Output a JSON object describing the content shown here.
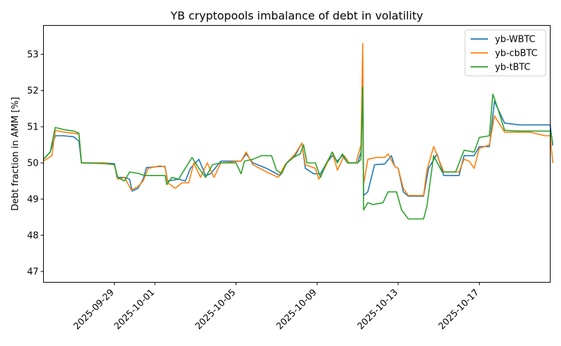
{
  "chart_data": {
    "type": "line",
    "title": "YB cryptopools imbalance of debt in volatility",
    "xlabel": "",
    "ylabel": "Debt fraction in AMM [%]",
    "x_type": "date",
    "xlim": [
      "2025-09-25T12:00",
      "2025-10-20T12:00"
    ],
    "ylim": [
      46.7,
      53.8
    ],
    "yticks": [
      47,
      48,
      49,
      50,
      51,
      52,
      53
    ],
    "xticks": [
      "2025-09-29",
      "2025-10-01",
      "2025-10-05",
      "2025-10-09",
      "2025-10-13",
      "2025-10-17"
    ],
    "grid": false,
    "legend_position": "top-right",
    "series": [
      {
        "name": "yb-WBTC",
        "color": "#1f77b4",
        "points": [
          [
            "2025-09-25T12:00",
            50.1
          ],
          [
            "2025-09-25T20:00",
            50.3
          ],
          [
            "2025-09-26T02:00",
            50.75
          ],
          [
            "2025-09-26T12:00",
            50.75
          ],
          [
            "2025-09-27T00:00",
            50.72
          ],
          [
            "2025-09-27T06:00",
            50.6
          ],
          [
            "2025-09-27T09:00",
            50.0
          ],
          [
            "2025-09-28T12:00",
            50.0
          ],
          [
            "2025-09-29T00:00",
            49.98
          ],
          [
            "2025-09-29T03:00",
            49.6
          ],
          [
            "2025-09-29T12:00",
            49.6
          ],
          [
            "2025-09-29T18:00",
            49.55
          ],
          [
            "2025-09-29T21:00",
            49.22
          ],
          [
            "2025-09-30T04:00",
            49.3
          ],
          [
            "2025-09-30T10:00",
            49.55
          ],
          [
            "2025-09-30T14:00",
            49.87
          ],
          [
            "2025-10-01T06:00",
            49.9
          ],
          [
            "2025-10-01T12:00",
            49.9
          ],
          [
            "2025-10-01T15:00",
            49.5
          ],
          [
            "2025-10-02T04:00",
            49.55
          ],
          [
            "2025-10-02T12:00",
            49.5
          ],
          [
            "2025-10-02T18:00",
            49.85
          ],
          [
            "2025-10-03T04:00",
            50.1
          ],
          [
            "2025-10-03T12:00",
            49.65
          ],
          [
            "2025-10-03T18:00",
            49.7
          ],
          [
            "2025-10-04T06:00",
            50.05
          ],
          [
            "2025-10-05T06:00",
            50.05
          ],
          [
            "2025-10-05T12:00",
            50.25
          ],
          [
            "2025-10-05T20:00",
            50.0
          ],
          [
            "2025-10-06T12:00",
            49.85
          ],
          [
            "2025-10-06T20:00",
            49.75
          ],
          [
            "2025-10-07T04:00",
            49.65
          ],
          [
            "2025-10-07T10:00",
            49.95
          ],
          [
            "2025-10-07T22:00",
            50.2
          ],
          [
            "2025-10-08T06:00",
            50.55
          ],
          [
            "2025-10-08T10:00",
            49.85
          ],
          [
            "2025-10-08T20:00",
            49.7
          ],
          [
            "2025-10-09T04:00",
            49.7
          ],
          [
            "2025-10-09T10:00",
            49.95
          ],
          [
            "2025-10-09T18:00",
            50.2
          ],
          [
            "2025-10-10T00:00",
            50.05
          ],
          [
            "2025-10-10T06:00",
            50.2
          ],
          [
            "2025-10-10T12:00",
            50.0
          ],
          [
            "2025-10-11T00:00",
            50.0
          ],
          [
            "2025-10-11T04:00",
            50.3
          ],
          [
            "2025-10-11T06:00",
            52.9
          ],
          [
            "2025-10-11T07:00",
            49.1
          ],
          [
            "2025-10-11T12:00",
            49.2
          ],
          [
            "2025-10-11T20:00",
            49.95
          ],
          [
            "2025-10-12T08:00",
            49.97
          ],
          [
            "2025-10-12T16:00",
            50.2
          ],
          [
            "2025-10-12T20:00",
            49.9
          ],
          [
            "2025-10-13T00:00",
            49.85
          ],
          [
            "2025-10-13T06:00",
            49.2
          ],
          [
            "2025-10-13T12:00",
            49.08
          ],
          [
            "2025-10-14T06:00",
            49.08
          ],
          [
            "2025-10-14T12:00",
            49.85
          ],
          [
            "2025-10-14T22:00",
            50.25
          ],
          [
            "2025-10-15T06:00",
            49.65
          ],
          [
            "2025-10-16T00:00",
            49.65
          ],
          [
            "2025-10-16T06:00",
            50.2
          ],
          [
            "2025-10-16T18:00",
            50.2
          ],
          [
            "2025-10-17T00:00",
            50.45
          ],
          [
            "2025-10-17T12:00",
            50.45
          ],
          [
            "2025-10-17T18:00",
            51.7
          ],
          [
            "2025-10-18T06:00",
            51.1
          ],
          [
            "2025-10-19T00:00",
            51.05
          ],
          [
            "2025-10-19T12:00",
            51.05
          ],
          [
            "2025-10-20T12:00",
            51.05
          ],
          [
            "2025-10-20T15:00",
            50.48
          ]
        ]
      },
      {
        "name": "yb-cbBTC",
        "color": "#ff7f0e",
        "points": [
          [
            "2025-09-25T12:00",
            50.05
          ],
          [
            "2025-09-25T22:00",
            50.2
          ],
          [
            "2025-09-26T02:00",
            50.9
          ],
          [
            "2025-09-26T12:00",
            50.85
          ],
          [
            "2025-09-27T00:00",
            50.82
          ],
          [
            "2025-09-27T06:00",
            50.8
          ],
          [
            "2025-09-27T09:00",
            50.0
          ],
          [
            "2025-09-28T12:00",
            50.0
          ],
          [
            "2025-09-29T00:00",
            49.95
          ],
          [
            "2025-09-29T04:00",
            49.55
          ],
          [
            "2025-09-29T12:00",
            49.6
          ],
          [
            "2025-09-29T20:00",
            49.25
          ],
          [
            "2025-09-30T04:00",
            49.35
          ],
          [
            "2025-09-30T10:00",
            49.5
          ],
          [
            "2025-09-30T16:00",
            49.85
          ],
          [
            "2025-10-01T06:00",
            49.92
          ],
          [
            "2025-10-01T12:00",
            49.88
          ],
          [
            "2025-10-01T15:00",
            49.45
          ],
          [
            "2025-10-02T00:00",
            49.3
          ],
          [
            "2025-10-02T08:00",
            49.45
          ],
          [
            "2025-10-02T16:00",
            49.45
          ],
          [
            "2025-10-02T22:00",
            50.0
          ],
          [
            "2025-10-03T06:00",
            49.6
          ],
          [
            "2025-10-03T14:00",
            50.0
          ],
          [
            "2025-10-03T22:00",
            49.6
          ],
          [
            "2025-10-04T06:00",
            50.0
          ],
          [
            "2025-10-05T06:00",
            50.05
          ],
          [
            "2025-10-05T12:00",
            50.3
          ],
          [
            "2025-10-05T20:00",
            49.95
          ],
          [
            "2025-10-06T12:00",
            49.75
          ],
          [
            "2025-10-07T02:00",
            49.6
          ],
          [
            "2025-10-07T10:00",
            49.95
          ],
          [
            "2025-10-07T22:00",
            50.25
          ],
          [
            "2025-10-08T06:00",
            50.55
          ],
          [
            "2025-10-08T10:00",
            49.95
          ],
          [
            "2025-10-08T22:00",
            49.85
          ],
          [
            "2025-10-09T02:00",
            49.55
          ],
          [
            "2025-10-09T10:00",
            49.9
          ],
          [
            "2025-10-09T18:00",
            50.3
          ],
          [
            "2025-10-10T00:00",
            49.8
          ],
          [
            "2025-10-10T08:00",
            50.2
          ],
          [
            "2025-10-10T14:00",
            50.0
          ],
          [
            "2025-10-10T22:00",
            50.0
          ],
          [
            "2025-10-11T04:00",
            50.5
          ],
          [
            "2025-10-11T06:00",
            53.3
          ],
          [
            "2025-10-11T07:00",
            49.4
          ],
          [
            "2025-10-11T12:00",
            50.1
          ],
          [
            "2025-10-11T22:00",
            50.15
          ],
          [
            "2025-10-12T08:00",
            50.15
          ],
          [
            "2025-10-12T12:00",
            50.25
          ],
          [
            "2025-10-12T20:00",
            49.9
          ],
          [
            "2025-10-13T00:00",
            49.85
          ],
          [
            "2025-10-13T06:00",
            49.3
          ],
          [
            "2025-10-13T12:00",
            49.1
          ],
          [
            "2025-10-14T06:00",
            49.1
          ],
          [
            "2025-10-14T10:00",
            49.8
          ],
          [
            "2025-10-14T18:00",
            50.45
          ],
          [
            "2025-10-15T06:00",
            49.75
          ],
          [
            "2025-10-16T00:00",
            49.75
          ],
          [
            "2025-10-16T06:00",
            50.1
          ],
          [
            "2025-10-16T12:00",
            50.05
          ],
          [
            "2025-10-16T18:00",
            49.85
          ],
          [
            "2025-10-17T00:00",
            50.4
          ],
          [
            "2025-10-17T12:00",
            50.5
          ],
          [
            "2025-10-17T18:00",
            51.3
          ],
          [
            "2025-10-18T06:00",
            50.85
          ],
          [
            "2025-10-19T00:00",
            50.85
          ],
          [
            "2025-10-19T12:00",
            50.85
          ],
          [
            "2025-10-20T06:00",
            50.75
          ],
          [
            "2025-10-20T12:00",
            50.75
          ],
          [
            "2025-10-20T15:00",
            50.0
          ]
        ]
      },
      {
        "name": "yb-tBTC",
        "color": "#2ca02c",
        "points": [
          [
            "2025-09-25T12:00",
            50.1
          ],
          [
            "2025-09-25T20:00",
            50.3
          ],
          [
            "2025-09-26T02:00",
            50.98
          ],
          [
            "2025-09-26T12:00",
            50.92
          ],
          [
            "2025-09-27T00:00",
            50.88
          ],
          [
            "2025-09-27T06:00",
            50.82
          ],
          [
            "2025-09-27T09:00",
            50.0
          ],
          [
            "2025-09-28T12:00",
            49.98
          ],
          [
            "2025-09-29T00:00",
            49.95
          ],
          [
            "2025-09-29T04:00",
            49.6
          ],
          [
            "2025-09-29T12:00",
            49.5
          ],
          [
            "2025-09-29T18:00",
            49.75
          ],
          [
            "2025-09-30T06:00",
            49.7
          ],
          [
            "2025-09-30T12:00",
            49.65
          ],
          [
            "2025-10-01T00:00",
            49.65
          ],
          [
            "2025-10-01T12:00",
            49.65
          ],
          [
            "2025-10-01T14:00",
            49.4
          ],
          [
            "2025-10-01T20:00",
            49.6
          ],
          [
            "2025-10-02T04:00",
            49.55
          ],
          [
            "2025-10-02T10:00",
            49.78
          ],
          [
            "2025-10-02T20:00",
            50.15
          ],
          [
            "2025-10-03T04:00",
            49.85
          ],
          [
            "2025-10-03T12:00",
            49.6
          ],
          [
            "2025-10-03T20:00",
            49.95
          ],
          [
            "2025-10-04T06:00",
            50.0
          ],
          [
            "2025-10-05T00:00",
            50.0
          ],
          [
            "2025-10-05T06:00",
            49.7
          ],
          [
            "2025-10-05T10:00",
            50.05
          ],
          [
            "2025-10-05T20:00",
            50.1
          ],
          [
            "2025-10-06T06:00",
            50.2
          ],
          [
            "2025-10-06T18:00",
            50.2
          ],
          [
            "2025-10-07T00:00",
            49.8
          ],
          [
            "2025-10-07T06:00",
            49.7
          ],
          [
            "2025-10-07T12:00",
            50.0
          ],
          [
            "2025-10-07T20:00",
            50.15
          ],
          [
            "2025-10-08T04:00",
            50.25
          ],
          [
            "2025-10-08T08:00",
            50.5
          ],
          [
            "2025-10-08T12:00",
            50.0
          ],
          [
            "2025-10-08T22:00",
            50.0
          ],
          [
            "2025-10-09T04:00",
            49.6
          ],
          [
            "2025-10-09T10:00",
            49.95
          ],
          [
            "2025-10-09T18:00",
            50.3
          ],
          [
            "2025-10-10T00:00",
            50.0
          ],
          [
            "2025-10-10T06:00",
            50.25
          ],
          [
            "2025-10-10T12:00",
            50.0
          ],
          [
            "2025-10-11T00:00",
            50.0
          ],
          [
            "2025-10-11T04:00",
            50.1
          ],
          [
            "2025-10-11T06:00",
            52.1
          ],
          [
            "2025-10-11T07:00",
            48.7
          ],
          [
            "2025-10-11T12:00",
            48.9
          ],
          [
            "2025-10-11T18:00",
            48.85
          ],
          [
            "2025-10-12T06:00",
            48.9
          ],
          [
            "2025-10-12T12:00",
            49.2
          ],
          [
            "2025-10-12T22:00",
            49.2
          ],
          [
            "2025-10-13T04:00",
            48.7
          ],
          [
            "2025-10-13T12:00",
            48.45
          ],
          [
            "2025-10-14T06:00",
            48.45
          ],
          [
            "2025-10-14T10:00",
            48.8
          ],
          [
            "2025-10-14T18:00",
            50.2
          ],
          [
            "2025-10-15T04:00",
            49.75
          ],
          [
            "2025-10-15T20:00",
            49.75
          ],
          [
            "2025-10-16T06:00",
            50.35
          ],
          [
            "2025-10-16T18:00",
            50.3
          ],
          [
            "2025-10-17T00:00",
            50.7
          ],
          [
            "2025-10-17T12:00",
            50.75
          ],
          [
            "2025-10-17T16:00",
            51.9
          ],
          [
            "2025-10-17T22:00",
            51.5
          ],
          [
            "2025-10-18T06:00",
            50.9
          ],
          [
            "2025-10-19T00:00",
            50.88
          ],
          [
            "2025-10-19T12:00",
            50.88
          ],
          [
            "2025-10-20T12:00",
            50.88
          ],
          [
            "2025-10-20T15:00",
            50.55
          ]
        ]
      }
    ]
  }
}
